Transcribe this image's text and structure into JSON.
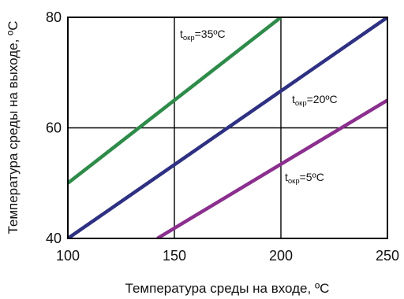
{
  "chart_data": {
    "type": "line",
    "xlabel": "Температура среды на входе, ",
    "xlabel_unit": "ºC",
    "ylabel": "Температура среды на выходе, ",
    "ylabel_unit": "ºC",
    "xlim": [
      100,
      250
    ],
    "ylim": [
      40,
      80
    ],
    "xticks": [
      "100",
      "150",
      "200",
      "250"
    ],
    "yticks": [
      "40",
      "60",
      "80"
    ],
    "grid": true,
    "colors": [
      "#2e8b4a",
      "#2e3182",
      "#8b2f8e"
    ],
    "series": [
      {
        "name_main": "t",
        "name_sub": "окр",
        "name_rest": "=35ºC",
        "points": [
          [
            100,
            50
          ],
          [
            200,
            80
          ]
        ]
      },
      {
        "name_main": "t",
        "name_sub": "окр",
        "name_rest": "=20ºC",
        "points": [
          [
            100,
            40
          ],
          [
            250,
            80
          ]
        ]
      },
      {
        "name_main": "t",
        "name_sub": "окр",
        "name_rest": "=5ºC",
        "points": [
          [
            142,
            40
          ],
          [
            250,
            65
          ]
        ]
      }
    ]
  }
}
